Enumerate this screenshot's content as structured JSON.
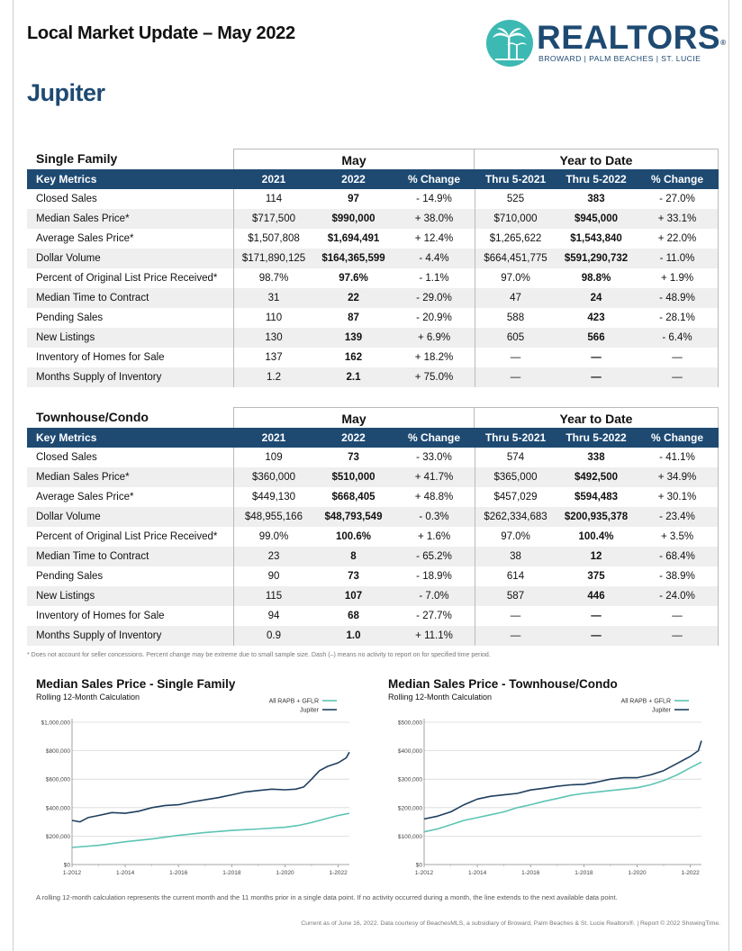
{
  "header": {
    "title": "Local Market Update – May 2022",
    "area": "Jupiter",
    "logo_word": "REALTORS",
    "logo_reg": "®",
    "logo_sub": "BROWARD | PALM BEACHES | ST. LUCIE"
  },
  "columns": {
    "key": "Key Metrics",
    "group1": "May",
    "group2": "Year to Date",
    "labels": [
      "2021",
      "2022",
      "% Change",
      "Thru 5-2021",
      "Thru 5-2022",
      "% Change"
    ]
  },
  "single_family": {
    "title": "Single Family",
    "rows": [
      {
        "metric": "Closed Sales",
        "v": [
          "114",
          "97",
          "- 14.9%",
          "525",
          "383",
          "- 27.0%"
        ]
      },
      {
        "metric": "Median Sales Price*",
        "v": [
          "$717,500",
          "$990,000",
          "+ 38.0%",
          "$710,000",
          "$945,000",
          "+ 33.1%"
        ]
      },
      {
        "metric": "Average Sales Price*",
        "v": [
          "$1,507,808",
          "$1,694,491",
          "+ 12.4%",
          "$1,265,622",
          "$1,543,840",
          "+ 22.0%"
        ]
      },
      {
        "metric": "Dollar Volume",
        "v": [
          "$171,890,125",
          "$164,365,599",
          "- 4.4%",
          "$664,451,775",
          "$591,290,732",
          "- 11.0%"
        ]
      },
      {
        "metric": "Percent of Original List Price Received*",
        "v": [
          "98.7%",
          "97.6%",
          "- 1.1%",
          "97.0%",
          "98.8%",
          "+ 1.9%"
        ]
      },
      {
        "metric": "Median Time to Contract",
        "v": [
          "31",
          "22",
          "- 29.0%",
          "47",
          "24",
          "- 48.9%"
        ]
      },
      {
        "metric": "Pending Sales",
        "v": [
          "110",
          "87",
          "- 20.9%",
          "588",
          "423",
          "- 28.1%"
        ]
      },
      {
        "metric": "New Listings",
        "v": [
          "130",
          "139",
          "+ 6.9%",
          "605",
          "566",
          "- 6.4%"
        ]
      },
      {
        "metric": "Inventory of Homes for Sale",
        "v": [
          "137",
          "162",
          "+ 18.2%",
          "—",
          "—",
          "—"
        ]
      },
      {
        "metric": "Months Supply of Inventory",
        "v": [
          "1.2",
          "2.1",
          "+ 75.0%",
          "—",
          "—",
          "—"
        ]
      }
    ]
  },
  "townhouse_condo": {
    "title": "Townhouse/Condo",
    "rows": [
      {
        "metric": "Closed Sales",
        "v": [
          "109",
          "73",
          "- 33.0%",
          "574",
          "338",
          "- 41.1%"
        ]
      },
      {
        "metric": "Median Sales Price*",
        "v": [
          "$360,000",
          "$510,000",
          "+ 41.7%",
          "$365,000",
          "$492,500",
          "+ 34.9%"
        ]
      },
      {
        "metric": "Average Sales Price*",
        "v": [
          "$449,130",
          "$668,405",
          "+ 48.8%",
          "$457,029",
          "$594,483",
          "+ 30.1%"
        ]
      },
      {
        "metric": "Dollar Volume",
        "v": [
          "$48,955,166",
          "$48,793,549",
          "- 0.3%",
          "$262,334,683",
          "$200,935,378",
          "- 23.4%"
        ]
      },
      {
        "metric": "Percent of Original List Price Received*",
        "v": [
          "99.0%",
          "100.6%",
          "+ 1.6%",
          "97.0%",
          "100.4%",
          "+ 3.5%"
        ]
      },
      {
        "metric": "Median Time to Contract",
        "v": [
          "23",
          "8",
          "- 65.2%",
          "38",
          "12",
          "- 68.4%"
        ]
      },
      {
        "metric": "Pending Sales",
        "v": [
          "90",
          "73",
          "- 18.9%",
          "614",
          "375",
          "- 38.9%"
        ]
      },
      {
        "metric": "New Listings",
        "v": [
          "115",
          "107",
          "- 7.0%",
          "587",
          "446",
          "- 24.0%"
        ]
      },
      {
        "metric": "Inventory of Homes for Sale",
        "v": [
          "94",
          "68",
          "- 27.7%",
          "—",
          "—",
          "—"
        ]
      },
      {
        "metric": "Months Supply of Inventory",
        "v": [
          "0.9",
          "1.0",
          "+ 11.1%",
          "—",
          "—",
          "—"
        ]
      }
    ]
  },
  "footnote": "* Does not account for seller concessions. Percent change may be extreme due to small sample size. Dash (–) means no activity to report on for specified time period.",
  "chart_note": "A rolling 12-month calculation represents the current month and the 11 months prior in a single data point. If no activity occurred during a month, the line extends to the next available data point.",
  "credits": "Current as of June 16, 2022. Data courtesy of BeachesMLS, a subsidiary of Broward, Palm Beaches & St. Lucie Realtors®. | Report © 2022 ShowingTime.",
  "colors": {
    "navy": "#1e4a72",
    "teal": "#5cc4b4",
    "jupiter_line": "#1e3f5e"
  },
  "chart_data": [
    {
      "type": "line",
      "title": "Median Sales Price - Single Family",
      "subtitle": "Rolling 12-Month Calculation",
      "x_ticks": [
        "1-2012",
        "1-2014",
        "1-2016",
        "1-2018",
        "1-2020",
        "1-2022"
      ],
      "y_ticks": [
        "$0",
        "$200,000",
        "$400,000",
        "$600,000",
        "$800,000",
        "$1,000,000"
      ],
      "ylim": [
        0,
        1000000
      ],
      "x_range": [
        2012.0,
        2022.42
      ],
      "legend_position": "top-right",
      "series": [
        {
          "name": "All RAPB + GFLR",
          "color": "#5cc4b4",
          "x": [
            2012.0,
            2013.0,
            2014.0,
            2015.0,
            2016.0,
            2017.0,
            2018.0,
            2019.0,
            2020.0,
            2020.5,
            2021.0,
            2021.5,
            2022.0,
            2022.42
          ],
          "y": [
            120000,
            135000,
            160000,
            180000,
            205000,
            225000,
            240000,
            250000,
            262000,
            275000,
            295000,
            320000,
            345000,
            360000
          ]
        },
        {
          "name": "Jupiter",
          "color": "#1e3f5e",
          "x": [
            2012.0,
            2012.3,
            2012.6,
            2013.0,
            2013.5,
            2014.0,
            2014.5,
            2015.0,
            2015.5,
            2016.0,
            2016.5,
            2017.0,
            2017.5,
            2018.0,
            2018.5,
            2019.0,
            2019.5,
            2020.0,
            2020.4,
            2020.7,
            2021.0,
            2021.3,
            2021.6,
            2022.0,
            2022.3,
            2022.42
          ],
          "y": [
            310000,
            300000,
            330000,
            345000,
            365000,
            360000,
            375000,
            400000,
            415000,
            420000,
            440000,
            455000,
            470000,
            490000,
            510000,
            520000,
            530000,
            525000,
            530000,
            545000,
            600000,
            660000,
            690000,
            715000,
            750000,
            790000
          ]
        }
      ]
    },
    {
      "type": "line",
      "title": "Median Sales Price - Townhouse/Condo",
      "subtitle": "Rolling 12-Month Calculation",
      "x_ticks": [
        "1-2012",
        "1-2014",
        "1-2016",
        "1-2018",
        "1-2020",
        "1-2022"
      ],
      "y_ticks": [
        "$0",
        "$100,000",
        "$200,000",
        "$300,000",
        "$400,000",
        "$500,000"
      ],
      "ylim": [
        0,
        500000
      ],
      "x_range": [
        2012.0,
        2022.42
      ],
      "legend_position": "top-right",
      "series": [
        {
          "name": "All RAPB + GFLR",
          "color": "#5cc4b4",
          "x": [
            2012.0,
            2012.5,
            2013.0,
            2013.5,
            2014.0,
            2014.5,
            2015.0,
            2015.5,
            2016.0,
            2016.5,
            2017.0,
            2017.5,
            2018.0,
            2018.5,
            2019.0,
            2019.5,
            2020.0,
            2020.5,
            2021.0,
            2021.5,
            2022.0,
            2022.42
          ],
          "y": [
            115000,
            125000,
            140000,
            155000,
            165000,
            175000,
            185000,
            200000,
            210000,
            222000,
            232000,
            243000,
            250000,
            255000,
            260000,
            265000,
            270000,
            280000,
            295000,
            315000,
            340000,
            360000
          ]
        },
        {
          "name": "Jupiter",
          "color": "#1e3f5e",
          "x": [
            2012.0,
            2012.5,
            2013.0,
            2013.5,
            2014.0,
            2014.5,
            2015.0,
            2015.5,
            2016.0,
            2016.5,
            2017.0,
            2017.5,
            2018.0,
            2018.5,
            2019.0,
            2019.5,
            2020.0,
            2020.5,
            2021.0,
            2021.5,
            2022.0,
            2022.3,
            2022.42
          ],
          "y": [
            160000,
            170000,
            185000,
            210000,
            230000,
            240000,
            245000,
            250000,
            262000,
            268000,
            275000,
            280000,
            282000,
            290000,
            300000,
            305000,
            305000,
            315000,
            330000,
            355000,
            380000,
            400000,
            435000
          ]
        }
      ]
    }
  ]
}
